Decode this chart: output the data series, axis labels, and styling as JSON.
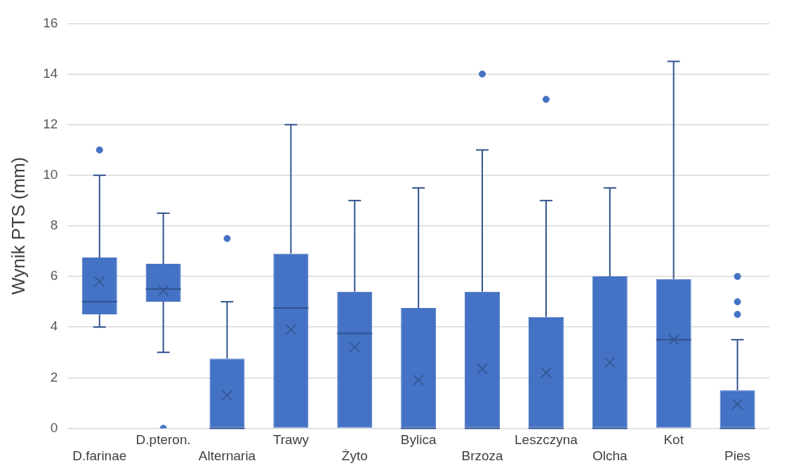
{
  "chart_data": {
    "type": "box",
    "ylabel": "Wynik PTS (mm)",
    "categories": [
      "D.farinae",
      "D.pteron.",
      "Alternaria",
      "Trawy",
      "Żyto",
      "Bylica",
      "Brzoza",
      "Leszczyna",
      "Olcha",
      "Kot",
      "Pies"
    ],
    "color": "#4472c4",
    "boxes": [
      {
        "low": 4,
        "q1": 4.5,
        "median": 5,
        "q3": 6.75,
        "high": 10,
        "mean": 5.8,
        "outliers": [
          11
        ]
      },
      {
        "low": 3,
        "q1": 5,
        "median": 5.5,
        "q3": 6.5,
        "high": 8.5,
        "mean": 5.45,
        "outliers": [
          0
        ]
      },
      {
        "low": 0,
        "q1": 0,
        "median": 0,
        "q3": 2.75,
        "high": 5,
        "mean": 1.3,
        "outliers": [
          7.5
        ]
      },
      {
        "low": 0,
        "q1": 0,
        "median": 4.75,
        "q3": 6.9,
        "high": 12,
        "mean": 3.9
      },
      {
        "low": 0,
        "q1": 0,
        "median": 3.75,
        "q3": 5.4,
        "high": 9,
        "mean": 3.2
      },
      {
        "low": 0,
        "q1": 0,
        "median": 0,
        "q3": 4.75,
        "high": 9.5,
        "mean": 1.9
      },
      {
        "low": 0,
        "q1": 0,
        "median": 0,
        "q3": 5.4,
        "high": 11,
        "mean": 2.35,
        "outliers": [
          14
        ]
      },
      {
        "low": 0,
        "q1": 0,
        "median": 0,
        "q3": 4.4,
        "high": 9,
        "mean": 2.2,
        "outliers": [
          13
        ]
      },
      {
        "low": 0,
        "q1": 0,
        "median": 0,
        "q3": 6,
        "high": 9.5,
        "mean": 2.6
      },
      {
        "low": 0,
        "q1": 0,
        "median": 3.5,
        "q3": 5.9,
        "high": 14.5,
        "mean": 3.5
      },
      {
        "low": 0,
        "q1": 0,
        "median": 0,
        "q3": 1.5,
        "high": 3.5,
        "mean": 0.95,
        "outliers": [
          4.5,
          5,
          6
        ]
      }
    ],
    "ylim": [
      0,
      16
    ],
    "yticks": [
      0,
      2,
      4,
      6,
      8,
      10,
      12,
      14,
      16
    ],
    "grid": "y",
    "legend": false,
    "marker": "circle"
  }
}
